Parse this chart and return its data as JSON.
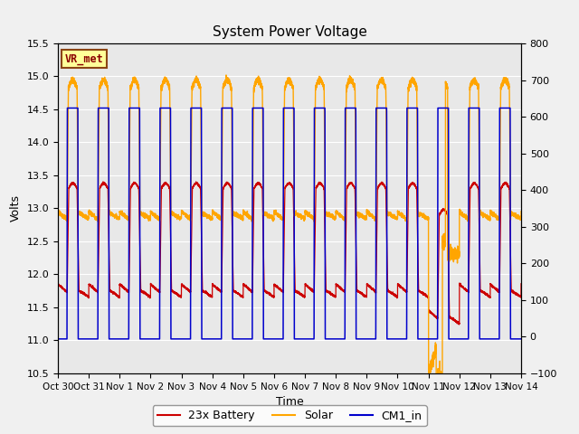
{
  "title": "System Power Voltage",
  "xlabel": "Time",
  "ylabel": "Volts",
  "ylim_left": [
    10.5,
    15.5
  ],
  "ylim_right": [
    -100,
    800
  ],
  "background_color": "#f0f0f0",
  "plot_bg_color": "#e8e8e8",
  "annotation_text": "VR_met",
  "annotation_color": "#8b0000",
  "annotation_bg": "#ffff99",
  "annotation_border": "#8b4513",
  "legend_items": [
    "23x Battery",
    "Solar",
    "CM1_in"
  ],
  "legend_colors": [
    "#cc0000",
    "#ffa500",
    "#0000cc"
  ],
  "x_tick_labels": [
    "Oct 30",
    "Oct 31",
    "Nov 1",
    "Nov 2",
    "Nov 3",
    "Nov 4",
    "Nov 5",
    "Nov 6",
    "Nov 7",
    "Nov 8",
    "Nov 9",
    "Nov 10",
    "Nov 11",
    "Nov 12",
    "Nov 13",
    "Nov 14"
  ],
  "num_days": 15,
  "seed": 42,
  "figsize": [
    6.4,
    4.8
  ],
  "dpi": 100
}
